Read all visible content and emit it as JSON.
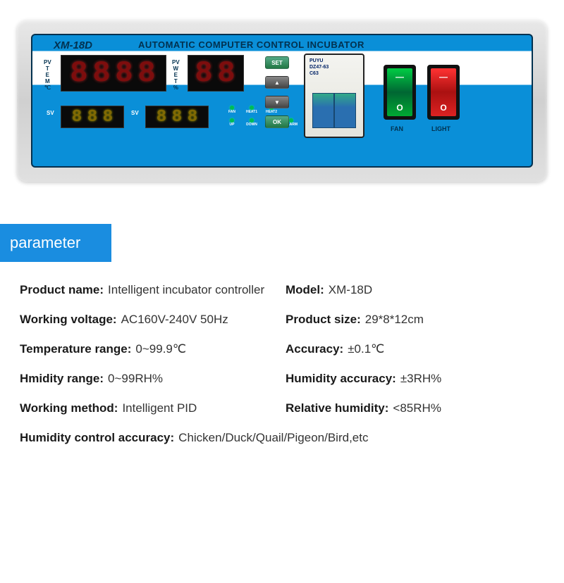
{
  "device": {
    "model_badge": "XM-18D",
    "title": "AUTOMATIC COMPUTER CONTROL INCUBATOR",
    "pv_temp_label": "PV\nT\nE\nM\n℃",
    "pv_wet_label": "PV\nW\nE\nT\n%",
    "sv_label": "SV",
    "big_display_1": "8.8.8.8",
    "big_display_2": "8.8",
    "small_display_1": "8.8.8",
    "small_display_2": "8.8.8",
    "leds_top": [
      "FAN",
      "HEAT1",
      "HEAT2",
      ""
    ],
    "leds_bottom": [
      "UP",
      "DOWN",
      "WET",
      "ALARM"
    ],
    "btn_set": "SET",
    "btn_up": "▲",
    "btn_down": "▼",
    "btn_ok": "OK",
    "breaker_brand": "PUYU",
    "breaker_model": "DZ47-63",
    "breaker_rating": "C63",
    "rocker_fan": "FAN",
    "rocker_light": "LIGHT",
    "colors": {
      "panel_blue": "#0a8fd8",
      "panel_dark": "#02314f",
      "frame_metal": "#d8d8d8",
      "led_red": "#dd1111",
      "led_yellow": "#cfa800",
      "rocker_green": "#00cc44",
      "rocker_red": "#ee2222",
      "header_blue": "#1a8de0"
    }
  },
  "section_header": "parameter",
  "specs": [
    {
      "k": "Product name:",
      "v": "Intelligent incubator controller",
      "col": 1
    },
    {
      "k": "Model:",
      "v": "XM-18D",
      "col": 2
    },
    {
      "k": "Working voltage:",
      "v": "AC160V-240V 50Hz",
      "col": 1
    },
    {
      "k": "Product size:",
      "v": "29*8*12cm",
      "col": 2
    },
    {
      "k": "Temperature range:",
      "v": "0~99.9℃",
      "col": 1
    },
    {
      "k": "Accuracy:",
      "v": "±0.1℃",
      "col": 2
    },
    {
      "k": "Hmidity range:",
      "v": "0~99RH%",
      "col": 1
    },
    {
      "k": "Humidity accuracy:",
      "v": "±3RH%",
      "col": 2
    },
    {
      "k": "Working method:",
      "v": "Intelligent PID",
      "col": 1
    },
    {
      "k": "Relative humidity:",
      "v": "<85RH%",
      "col": 2
    },
    {
      "k": "Humidity control accuracy:",
      "v": "Chicken/Duck/Quail/Pigeon/Bird,etc",
      "col": "full"
    }
  ]
}
